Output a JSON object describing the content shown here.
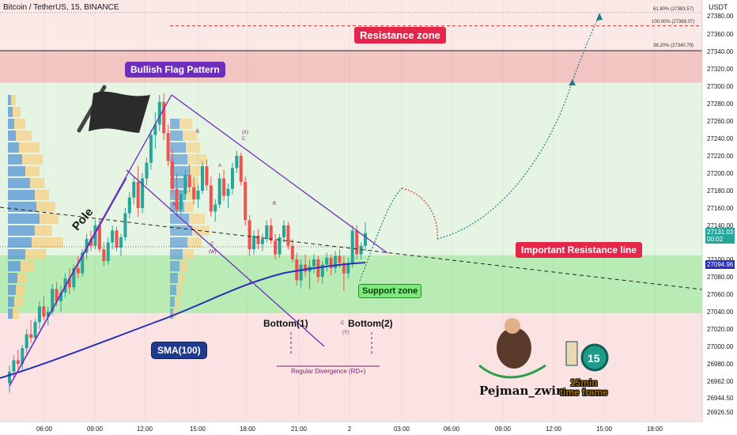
{
  "header": {
    "title": "Bitcoin / TetherUS, 15, BINANCE",
    "currency": "USDT"
  },
  "annotations": {
    "resistance_zone": "Resistance zone",
    "bullish_flag": "Bullish Flag Pattern",
    "important_resistance": "Important Resistance line",
    "support_zone": "Support zone",
    "sma": "SMA(100)",
    "pole": "Pole",
    "bottom1": "Bottom(1)",
    "bottom2": "Bottom(2)",
    "regular_divergence": "Regular Divergence (RD+)",
    "brand": "Pejman_zwin",
    "timeframe_number": "15",
    "timeframe_line1": "15min",
    "timeframe_line2": "time frame",
    "fib_618": "61.80% (27383.57)",
    "fib_100": "100.00% (27369.07)",
    "fib_382": "38.20% (27340.79)",
    "wave_labels": [
      "(X)",
      "C",
      "B",
      "A",
      "A",
      "C",
      "(W)",
      "B",
      "A",
      "C",
      "(Y)"
    ]
  },
  "colors": {
    "bull": "#26a69a",
    "bear": "#ef5350",
    "resistance_fill": "#f2c4c2",
    "support_fill": "#b9ecb5",
    "upper_green": "#e6f4e4",
    "lower_red": "#fbe3e3",
    "sma": "#2730b8",
    "pattern": "#6f2dbd",
    "projection": "#1e7c86",
    "projection_red": "#d32f2f"
  },
  "chart_data": {
    "type": "candlestick",
    "symbol": "Bitcoin / TetherUS",
    "interval": "15",
    "exchange": "BINANCE",
    "ylim": [
      26915,
      27398
    ],
    "x_tick_labels": [
      "06:00",
      "09:00",
      "12:00",
      "15:00",
      "18:00",
      "21:00",
      "2",
      "03:00",
      "06:00",
      "09:00",
      "12:00",
      "15:00",
      "18:00"
    ],
    "y_tick_labels": [
      "27380.00",
      "27360.00",
      "27340.00",
      "27320.00",
      "27300.00",
      "27280.00",
      "27260.00",
      "27240.00",
      "27220.00",
      "27200.00",
      "27180.00",
      "27160.00",
      "27140.00",
      "27100.00",
      "27080.00",
      "27060.00",
      "27040.00",
      "27020.00",
      "27000.00",
      "26980.00",
      "26962.00",
      "26944.50",
      "26926.50"
    ],
    "last_price": {
      "value": "27131.03",
      "countdown": "00:02"
    },
    "sma_value": "27094.96",
    "zones": {
      "resistance": [
        27304,
        27342
      ],
      "support": [
        27038,
        27105
      ],
      "fib_levels": [
        {
          "label": "61.80%",
          "price": 27383.57
        },
        {
          "label": "100.00%",
          "price": 27369.07
        },
        {
          "label": "38.20%",
          "price": 27340.79
        }
      ]
    },
    "ohlc": [
      [
        26960,
        26978,
        26950,
        26972
      ],
      [
        26972,
        26990,
        26966,
        26984
      ],
      [
        26984,
        26996,
        26975,
        26980
      ],
      [
        26980,
        27002,
        26974,
        26998
      ],
      [
        26998,
        27020,
        26992,
        27014
      ],
      [
        27014,
        27030,
        27004,
        27010
      ],
      [
        27010,
        27032,
        27006,
        27028
      ],
      [
        27028,
        27052,
        27020,
        27046
      ],
      [
        27046,
        27058,
        27030,
        27034
      ],
      [
        27034,
        27046,
        27024,
        27040
      ],
      [
        27040,
        27072,
        27036,
        27066
      ],
      [
        27066,
        27074,
        27046,
        27052
      ],
      [
        27052,
        27070,
        27040,
        27062
      ],
      [
        27062,
        27084,
        27056,
        27078
      ],
      [
        27078,
        27090,
        27060,
        27068
      ],
      [
        27068,
        27094,
        27064,
        27090
      ],
      [
        27090,
        27104,
        27078,
        27084
      ],
      [
        27084,
        27112,
        27080,
        27108
      ],
      [
        27108,
        27130,
        27100,
        27124
      ],
      [
        27124,
        27134,
        27110,
        27116
      ],
      [
        27116,
        27146,
        27112,
        27140
      ],
      [
        27140,
        27148,
        27108,
        27112
      ],
      [
        27112,
        27120,
        27092,
        27098
      ],
      [
        27098,
        27126,
        27094,
        27120
      ],
      [
        27120,
        27140,
        27112,
        27134
      ],
      [
        27134,
        27138,
        27110,
        27114
      ],
      [
        27114,
        27130,
        27104,
        27126
      ],
      [
        27126,
        27160,
        27122,
        27154
      ],
      [
        27154,
        27178,
        27148,
        27172
      ],
      [
        27172,
        27196,
        27164,
        27190
      ],
      [
        27190,
        27208,
        27150,
        27160
      ],
      [
        27160,
        27200,
        27154,
        27194
      ],
      [
        27194,
        27218,
        27186,
        27212
      ],
      [
        27212,
        27250,
        27204,
        27244
      ],
      [
        27244,
        27270,
        27228,
        27256
      ],
      [
        27256,
        27290,
        27248,
        27282
      ],
      [
        27282,
        27292,
        27238,
        27246
      ],
      [
        27246,
        27256,
        27208,
        27214
      ],
      [
        27214,
        27228,
        27176,
        27182
      ],
      [
        27182,
        27200,
        27150,
        27158
      ],
      [
        27158,
        27180,
        27152,
        27176
      ],
      [
        27176,
        27204,
        27170,
        27198
      ],
      [
        27198,
        27210,
        27178,
        27184
      ],
      [
        27184,
        27196,
        27164,
        27170
      ],
      [
        27170,
        27186,
        27160,
        27180
      ],
      [
        27180,
        27214,
        27176,
        27208
      ],
      [
        27208,
        27216,
        27180,
        27186
      ],
      [
        27186,
        27196,
        27150,
        27156
      ],
      [
        27156,
        27170,
        27144,
        27164
      ],
      [
        27164,
        27200,
        27160,
        27194
      ],
      [
        27194,
        27204,
        27168,
        27174
      ],
      [
        27174,
        27188,
        27160,
        27182
      ],
      [
        27182,
        27212,
        27176,
        27206
      ],
      [
        27206,
        27226,
        27200,
        27220
      ],
      [
        27220,
        27224,
        27186,
        27190
      ],
      [
        27190,
        27196,
        27140,
        27146
      ],
      [
        27146,
        27152,
        27104,
        27112
      ],
      [
        27112,
        27134,
        27106,
        27128
      ],
      [
        27128,
        27136,
        27112,
        27118
      ],
      [
        27118,
        27130,
        27110,
        27124
      ],
      [
        27124,
        27146,
        27120,
        27140
      ],
      [
        27140,
        27148,
        27118,
        27122
      ],
      [
        27122,
        27130,
        27100,
        27106
      ],
      [
        27106,
        27130,
        27102,
        27126
      ],
      [
        27126,
        27146,
        27120,
        27140
      ],
      [
        27140,
        27144,
        27112,
        27116
      ],
      [
        27116,
        27124,
        27096,
        27100
      ],
      [
        27100,
        27108,
        27070,
        27076
      ],
      [
        27076,
        27100,
        27068,
        27094
      ],
      [
        27094,
        27106,
        27080,
        27086
      ],
      [
        27086,
        27100,
        27066,
        27092
      ],
      [
        27092,
        27106,
        27084,
        27100
      ],
      [
        27100,
        27104,
        27074,
        27080
      ],
      [
        27080,
        27098,
        27072,
        27094
      ],
      [
        27094,
        27108,
        27086,
        27102
      ],
      [
        27102,
        27106,
        27082,
        27090
      ],
      [
        27090,
        27110,
        27084,
        27104
      ],
      [
        27104,
        27112,
        27090,
        27096
      ],
      [
        27096,
        27104,
        27064,
        27084
      ],
      [
        27084,
        27102,
        27078,
        27096
      ],
      [
        27096,
        27140,
        27090,
        27134
      ],
      [
        27134,
        27140,
        27100,
        27106
      ],
      [
        27106,
        27120,
        27100,
        27116
      ],
      [
        27116,
        27144,
        27110,
        27131
      ]
    ]
  }
}
